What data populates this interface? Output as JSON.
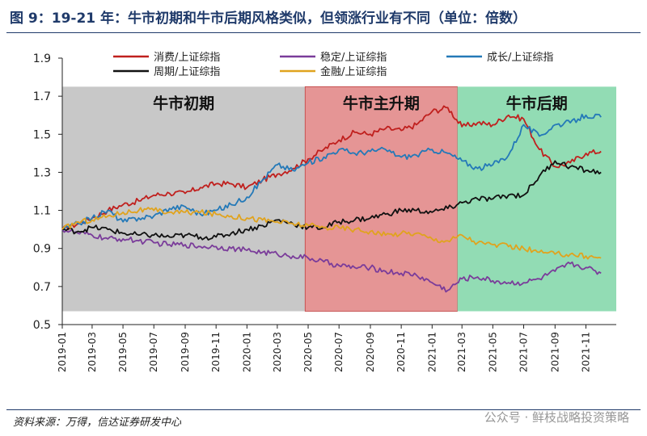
{
  "page": {
    "title": "图 9：19-21 年：牛市初期和牛市后期风格类似，但领涨行业有不同（单位：倍数）",
    "source": "资料来源：万得，信达证券研发中心",
    "watermark": "公众号 · 鲜枝战略投资策略"
  },
  "chart_data": {
    "type": "line",
    "title": "",
    "xlabel": "",
    "ylabel": "",
    "ylim": [
      0.5,
      1.9
    ],
    "yticks": [
      0.5,
      0.7,
      0.9,
      1.1,
      1.3,
      1.5,
      1.7,
      1.9
    ],
    "ytick_labels": [
      "0.5",
      "0.7",
      "0.9",
      "1.1",
      "1.3",
      "1.5",
      "1.7",
      "1.9"
    ],
    "xlim": [
      "2019-01",
      "2021-12-31"
    ],
    "xtick_labels": [
      "2019-01",
      "2019-03",
      "2019-05",
      "2019-07",
      "2019-09",
      "2019-11",
      "2020-01",
      "2020-03",
      "2020-05",
      "2020-07",
      "2020-09",
      "2020-11",
      "2021-01",
      "2021-03",
      "2021-05",
      "2021-07",
      "2021-09",
      "2021-11"
    ],
    "grid": false,
    "legend_position": "top",
    "regions": [
      {
        "label": "牛市初期",
        "start": "2019-01",
        "end": "2020-04-25",
        "color": "#c8c8c8"
      },
      {
        "label": "牛市主升期",
        "start": "2020-04-25",
        "end": "2021-02-20",
        "color": "#e59595"
      },
      {
        "label": "牛市后期",
        "start": "2021-02-20",
        "end": "2021-12-31",
        "color": "#92dcb4"
      }
    ],
    "x": [
      "2019-01",
      "2019-02",
      "2019-03",
      "2019-04",
      "2019-05",
      "2019-06",
      "2019-07",
      "2019-08",
      "2019-09",
      "2019-10",
      "2019-11",
      "2019-12",
      "2020-01",
      "2020-02",
      "2020-03",
      "2020-04",
      "2020-05",
      "2020-06",
      "2020-07",
      "2020-08",
      "2020-09",
      "2020-10",
      "2020-11",
      "2020-12",
      "2021-01",
      "2021-02",
      "2021-03",
      "2021-04",
      "2021-05",
      "2021-06",
      "2021-07",
      "2021-08",
      "2021-09",
      "2021-10",
      "2021-11",
      "2021-12"
    ],
    "series": [
      {
        "name": "消费/上证综指",
        "color": "#c0201e",
        "values": [
          1.0,
          1.03,
          1.06,
          1.1,
          1.13,
          1.15,
          1.18,
          1.19,
          1.19,
          1.22,
          1.24,
          1.24,
          1.22,
          1.26,
          1.29,
          1.32,
          1.37,
          1.42,
          1.47,
          1.51,
          1.5,
          1.53,
          1.52,
          1.55,
          1.62,
          1.64,
          1.54,
          1.56,
          1.55,
          1.6,
          1.58,
          1.42,
          1.33,
          1.35,
          1.4,
          1.41
        ]
      },
      {
        "name": "稳定/上证综指",
        "color": "#7a3c9a",
        "values": [
          1.0,
          0.98,
          0.97,
          0.95,
          0.95,
          0.94,
          0.93,
          0.92,
          0.92,
          0.91,
          0.91,
          0.9,
          0.89,
          0.88,
          0.87,
          0.86,
          0.85,
          0.83,
          0.81,
          0.8,
          0.8,
          0.78,
          0.77,
          0.76,
          0.72,
          0.68,
          0.74,
          0.75,
          0.73,
          0.72,
          0.72,
          0.74,
          0.78,
          0.82,
          0.8,
          0.77
        ]
      },
      {
        "name": "成长/上证综指",
        "color": "#2479b8",
        "values": [
          1.0,
          1.03,
          1.06,
          1.1,
          1.04,
          1.06,
          1.07,
          1.11,
          1.12,
          1.08,
          1.1,
          1.13,
          1.17,
          1.26,
          1.34,
          1.31,
          1.35,
          1.38,
          1.42,
          1.4,
          1.41,
          1.42,
          1.38,
          1.39,
          1.42,
          1.4,
          1.36,
          1.32,
          1.34,
          1.39,
          1.55,
          1.49,
          1.55,
          1.56,
          1.6,
          1.59
        ]
      },
      {
        "name": "周期/上证综指",
        "color": "#111111",
        "values": [
          1.0,
          0.99,
          1.01,
          1.0,
          0.98,
          0.97,
          0.97,
          0.96,
          0.97,
          0.96,
          0.96,
          0.98,
          1.0,
          1.02,
          1.05,
          1.03,
          1.01,
          1.01,
          1.04,
          1.05,
          1.06,
          1.08,
          1.1,
          1.1,
          1.09,
          1.11,
          1.14,
          1.16,
          1.16,
          1.18,
          1.18,
          1.28,
          1.36,
          1.33,
          1.31,
          1.3
        ]
      },
      {
        "name": "金融/上证综指",
        "color": "#e0a31e",
        "values": [
          1.0,
          1.04,
          1.05,
          1.07,
          1.09,
          1.1,
          1.1,
          1.09,
          1.09,
          1.09,
          1.08,
          1.07,
          1.06,
          1.05,
          1.04,
          1.03,
          1.02,
          1.01,
          1.01,
          1.0,
          0.99,
          0.97,
          0.98,
          0.98,
          0.95,
          0.94,
          0.97,
          0.93,
          0.92,
          0.91,
          0.9,
          0.88,
          0.87,
          0.87,
          0.86,
          0.85
        ]
      }
    ]
  }
}
